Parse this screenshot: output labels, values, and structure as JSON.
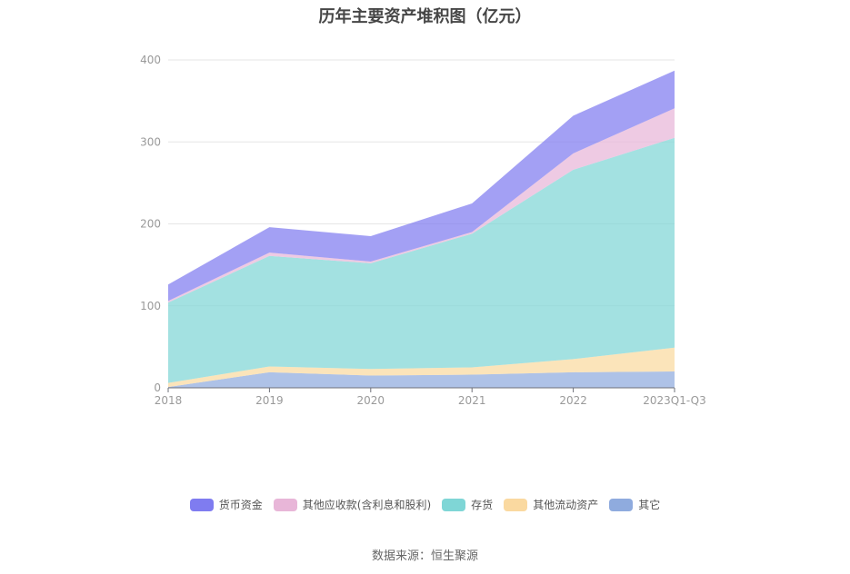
{
  "chart_data": {
    "type": "area",
    "stacked": true,
    "title": "历年主要资产堆积图（亿元）",
    "categories": [
      "2018",
      "2019",
      "2020",
      "2021",
      "2022",
      "2023Q1-Q3"
    ],
    "ylim": [
      0,
      400
    ],
    "yticks": [
      0,
      100,
      200,
      300,
      400
    ],
    "grid": true,
    "legend_position": "bottom",
    "series": [
      {
        "name": "其它",
        "color": "#8fabde",
        "values": [
          1,
          19,
          15,
          16,
          19,
          20
        ]
      },
      {
        "name": "其他流动资产",
        "color": "#fad9a0",
        "values": [
          5,
          7,
          8,
          9,
          16,
          29
        ]
      },
      {
        "name": "存货",
        "color": "#7fd6d6",
        "values": [
          98,
          135,
          129,
          163,
          231,
          256
        ]
      },
      {
        "name": "其他应收款(含利息和股利)",
        "color": "#e8b6d8",
        "values": [
          2,
          4,
          2,
          2,
          20,
          36
        ]
      },
      {
        "name": "货币资金",
        "color": "#7f7cf0",
        "values": [
          20,
          31,
          31,
          35,
          46,
          46
        ]
      }
    ]
  },
  "legend": [
    {
      "name": "货币资金",
      "color": "#7f7cf0"
    },
    {
      "name": "其他应收款(含利息和股利)",
      "color": "#e8b6d8"
    },
    {
      "name": "存货",
      "color": "#7fd6d6"
    },
    {
      "name": "其他流动资产",
      "color": "#fad9a0"
    },
    {
      "name": "其它",
      "color": "#8fabde"
    }
  ],
  "source": "数据来源：恒生聚源"
}
